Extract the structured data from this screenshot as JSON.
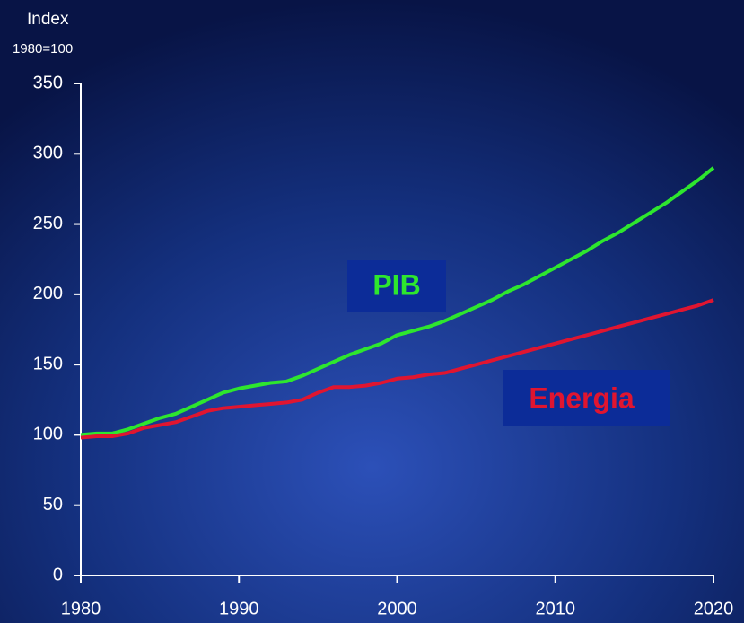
{
  "chart_data": {
    "type": "line",
    "ylabel": "Index",
    "ysublabel": "1980=100",
    "x": [
      1980,
      1981,
      1982,
      1983,
      1984,
      1985,
      1986,
      1987,
      1988,
      1989,
      1990,
      1991,
      1992,
      1993,
      1994,
      1995,
      1996,
      1997,
      1998,
      1999,
      2000,
      2001,
      2002,
      2003,
      2004,
      2005,
      2006,
      2007,
      2008,
      2009,
      2010,
      2011,
      2012,
      2013,
      2014,
      2015,
      2016,
      2017,
      2018,
      2019,
      2020
    ],
    "series": [
      {
        "name": "PIB",
        "color": "#2ee62e",
        "values": [
          100,
          101,
          101,
          104,
          108,
          112,
          115,
          120,
          125,
          130,
          133,
          135,
          137,
          138,
          142,
          147,
          152,
          157,
          161,
          165,
          171,
          174,
          177,
          181,
          186,
          191,
          196,
          202,
          207,
          213,
          219,
          225,
          231,
          238,
          244,
          251,
          258,
          265,
          273,
          281,
          290
        ]
      },
      {
        "name": "Energia",
        "color": "#e01530",
        "values": [
          98,
          99,
          99,
          101,
          105,
          107,
          109,
          113,
          117,
          119,
          120,
          121,
          122,
          123,
          125,
          130,
          134,
          134,
          135,
          137,
          140,
          141,
          143,
          144,
          147,
          150,
          153,
          156,
          159,
          162,
          165,
          168,
          171,
          174,
          177,
          180,
          183,
          186,
          189,
          192,
          196
        ]
      }
    ],
    "xlim": [
      1980,
      2020
    ],
    "xticks": [
      1980,
      1990,
      2000,
      2010,
      2020
    ],
    "ylim": [
      0,
      350
    ],
    "yticks": [
      0,
      50,
      100,
      150,
      200,
      250,
      300,
      350
    ]
  }
}
